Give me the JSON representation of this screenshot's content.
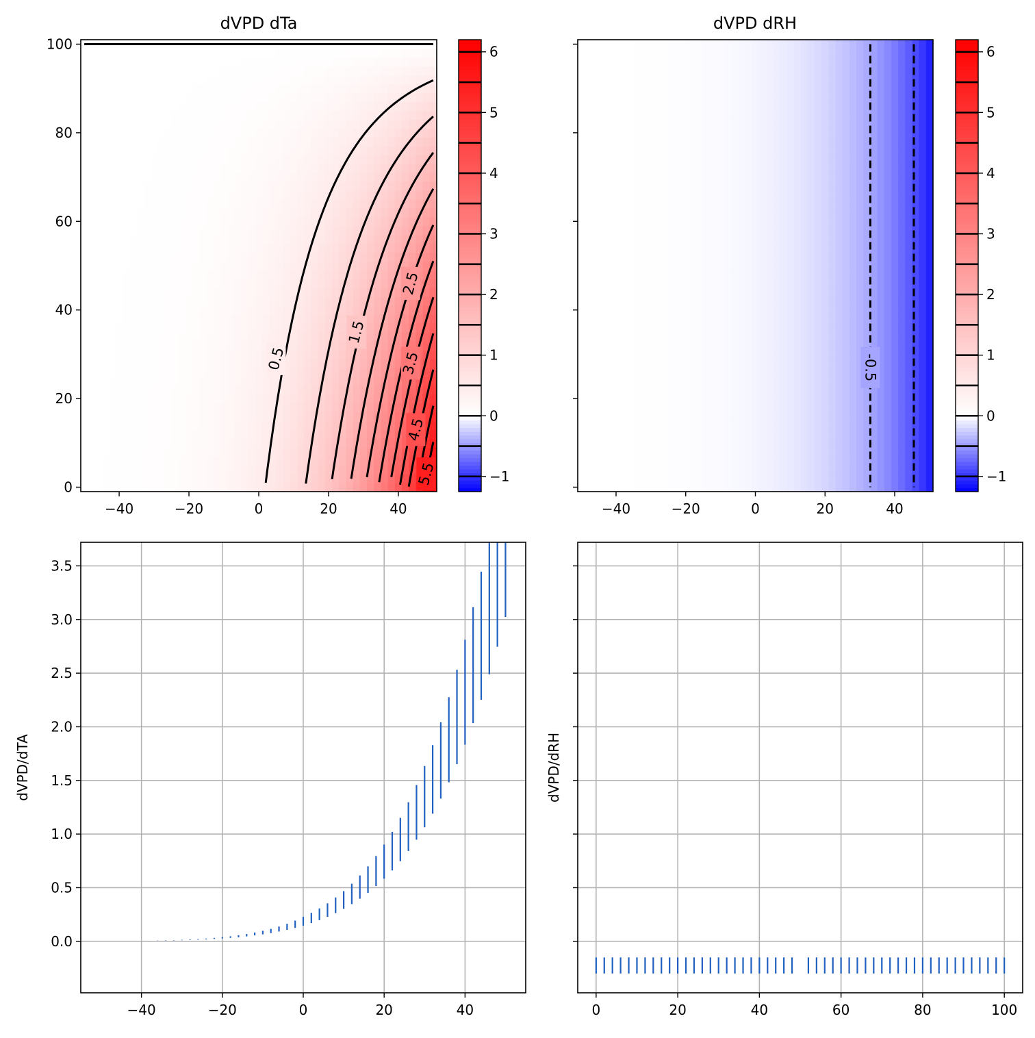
{
  "colors": {
    "positive_max": "#ff0000",
    "negative_max": "#0000ff",
    "neutral": "#ffffff",
    "contour": "#000000",
    "errorbar": "#2060c0",
    "grid": "#b0b0b0"
  },
  "chart_data": [
    {
      "type": "heatmap",
      "title": "dVPD dTa",
      "xlim": [
        -51,
        51
      ],
      "ylim": [
        -1,
        101
      ],
      "xticks": [
        "−40",
        "−20",
        "0",
        "20",
        "40"
      ],
      "xtick_values": [
        -40,
        -20,
        0,
        20,
        40
      ],
      "yticks": [
        "0",
        "20",
        "40",
        "60",
        "80",
        "100"
      ],
      "ytick_values": [
        0,
        20,
        40,
        60,
        80,
        100
      ],
      "x_label": "",
      "y_label": "",
      "cmap": "bwr",
      "vmin": -1.25,
      "vmax": 6.2,
      "contour_levels": [
        0.5,
        1.0,
        1.5,
        2.0,
        2.5,
        3.0,
        3.5,
        4.0,
        4.5,
        5.0,
        5.5,
        6.0
      ],
      "contour_labels": [
        {
          "text": "0.5",
          "x": 5,
          "y": 29
        },
        {
          "text": "1.5",
          "x": 28,
          "y": 35
        },
        {
          "text": "2.5",
          "x": 43.5,
          "y": 46
        },
        {
          "text": "3.5",
          "x": 43.5,
          "y": 28
        },
        {
          "text": "4.5",
          "x": 45,
          "y": 13
        },
        {
          "text": "5.5",
          "x": 48,
          "y": 3
        }
      ],
      "zero_line_y": 100,
      "colorbar": {
        "ticks": [
          "−1",
          "0",
          "1",
          "2",
          "3",
          "4",
          "5",
          "6"
        ],
        "tick_values": [
          -1,
          0,
          1,
          2,
          3,
          4,
          5,
          6
        ],
        "range": [
          -1.25,
          6.2
        ],
        "marked_levels": [
          -1.0,
          -0.5,
          0.0,
          0.5,
          1.0,
          1.5,
          2.0,
          2.5,
          3.0,
          3.5,
          4.0,
          4.5,
          5.0,
          5.5,
          6.0
        ]
      }
    },
    {
      "type": "heatmap",
      "title": "dVPD dRH",
      "xlim": [
        -51,
        51
      ],
      "ylim": [
        -1,
        101
      ],
      "xticks": [
        "−40",
        "−20",
        "0",
        "20",
        "40"
      ],
      "xtick_values": [
        -40,
        -20,
        0,
        20,
        40
      ],
      "x_label": "",
      "y_label": "",
      "cmap": "bwr",
      "vmin": -1.25,
      "vmax": 6.2,
      "contour_levels": [
        -0.5,
        -1.0
      ],
      "contour_x_positions": [
        33,
        45.5
      ],
      "contour_labels": [
        {
          "text": "-0.5",
          "x": 33,
          "y": 27
        }
      ],
      "colorbar": {
        "ticks": [
          "−1",
          "0",
          "1",
          "2",
          "3",
          "4",
          "5",
          "6"
        ],
        "tick_values": [
          -1,
          0,
          1,
          2,
          3,
          4,
          5,
          6
        ],
        "range": [
          -1.25,
          6.2
        ],
        "marked_levels": [
          -1.0,
          -0.5,
          0.0,
          0.5,
          1.0,
          1.5,
          2.0,
          2.5,
          3.0,
          3.5,
          4.0,
          4.5,
          5.0,
          5.5,
          6.0
        ]
      }
    },
    {
      "type": "errorbar",
      "title": "",
      "xlabel": "",
      "ylabel": "dVPD/dTA",
      "xlim": [
        -55,
        55
      ],
      "ylim": [
        -0.48,
        3.72
      ],
      "xticks": [
        "−40",
        "−20",
        "0",
        "20",
        "40"
      ],
      "xtick_values": [
        -40,
        -20,
        0,
        20,
        40
      ],
      "yticks": [
        "0.0",
        "0.5",
        "1.0",
        "1.5",
        "2.0",
        "2.5",
        "3.0",
        "3.5"
      ],
      "ytick_values": [
        0.0,
        0.5,
        1.0,
        1.5,
        2.0,
        2.5,
        3.0,
        3.5
      ],
      "grid": true,
      "x": [
        -40,
        -38,
        -36,
        -34,
        -32,
        -30,
        -28,
        -26,
        -24,
        -22,
        -20,
        -18,
        -16,
        -14,
        -12,
        -10,
        -8,
        -6,
        -4,
        -2,
        0,
        2,
        4,
        6,
        8,
        10,
        12,
        14,
        16,
        18,
        20,
        22,
        24,
        26,
        28,
        30,
        32,
        34,
        36,
        38,
        40,
        42,
        44,
        46,
        48,
        50
      ],
      "y_low": [
        0.003,
        0.004,
        0.005,
        0.006,
        0.008,
        0.01,
        0.012,
        0.015,
        0.018,
        0.022,
        0.027,
        0.032,
        0.038,
        0.046,
        0.055,
        0.065,
        0.077,
        0.091,
        0.107,
        0.125,
        0.146,
        0.17,
        0.197,
        0.228,
        0.263,
        0.303,
        0.347,
        0.397,
        0.452,
        0.515,
        0.584,
        0.661,
        0.747,
        0.842,
        0.947,
        1.063,
        1.19,
        1.33,
        1.483,
        1.651,
        1.834,
        2.034,
        2.252,
        2.489,
        2.746,
        3.024
      ],
      "y_high": [
        0.004,
        0.005,
        0.007,
        0.009,
        0.011,
        0.014,
        0.017,
        0.021,
        0.026,
        0.032,
        0.039,
        0.047,
        0.057,
        0.068,
        0.082,
        0.098,
        0.116,
        0.138,
        0.163,
        0.193,
        0.228,
        0.265,
        0.307,
        0.354,
        0.409,
        0.468,
        0.537,
        0.614,
        0.699,
        0.795,
        0.902,
        1.02,
        1.151,
        1.297,
        1.457,
        1.634,
        1.829,
        2.042,
        2.276,
        2.532,
        2.811,
        3.115,
        3.446,
        3.806,
        4.196,
        4.618
      ]
    },
    {
      "type": "errorbar",
      "title": "",
      "xlabel": "",
      "ylabel": "dVPD/dRH",
      "xlim": [
        -4.5,
        104.5
      ],
      "ylim": [
        -0.48,
        3.72
      ],
      "xticks": [
        "0",
        "20",
        "40",
        "60",
        "80",
        "100"
      ],
      "xtick_values": [
        0,
        20,
        40,
        60,
        80,
        100
      ],
      "ytick_values": [
        0.0,
        0.5,
        1.0,
        1.5,
        2.0,
        2.5,
        3.0,
        3.5
      ],
      "grid": true,
      "x": [
        0,
        2,
        4,
        6,
        8,
        10,
        12,
        14,
        16,
        18,
        20,
        22,
        24,
        26,
        28,
        30,
        32,
        34,
        36,
        38,
        40,
        42,
        44,
        46,
        48,
        52,
        54,
        56,
        58,
        60,
        62,
        64,
        66,
        68,
        70,
        72,
        74,
        76,
        78,
        80,
        82,
        84,
        86,
        88,
        90,
        92,
        94,
        96,
        98,
        100
      ],
      "y_low": -0.3,
      "y_high": -0.15
    }
  ]
}
